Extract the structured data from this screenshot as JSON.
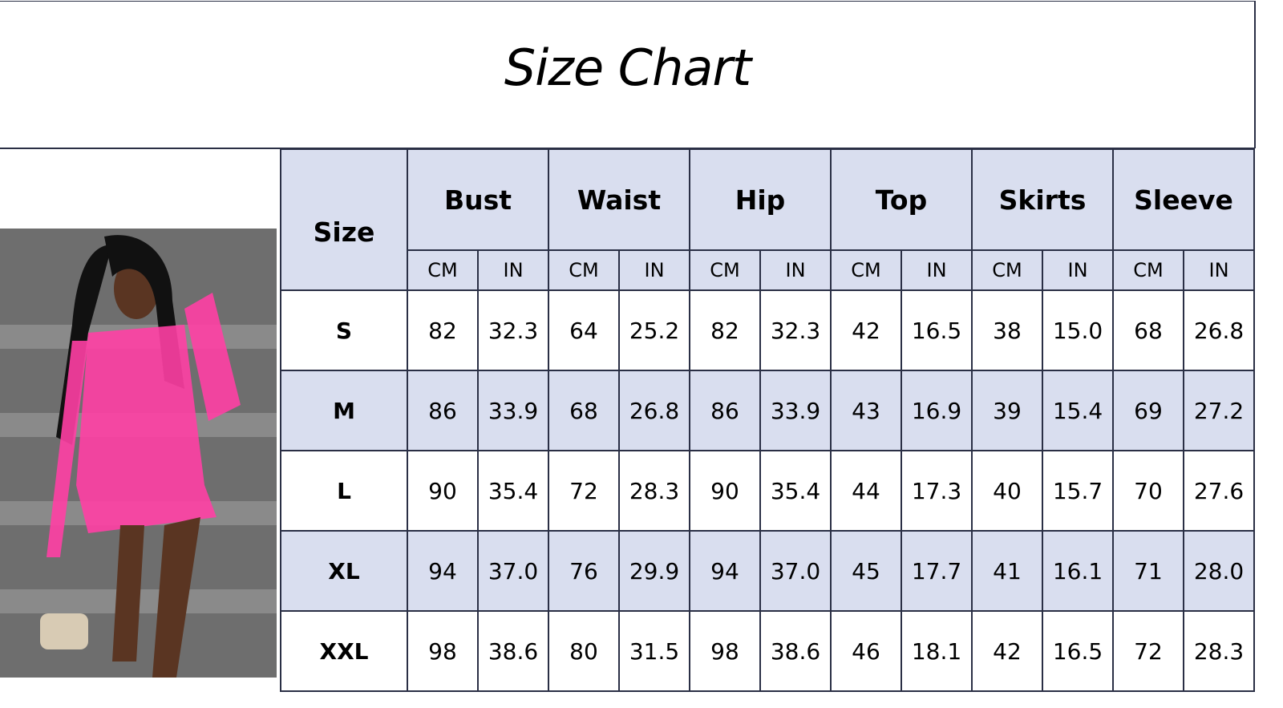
{
  "title": "Size Chart",
  "colors": {
    "header_bg": "#d9deef",
    "border": "#2a2f45",
    "dress": "#ff3fa4"
  },
  "photo": {
    "icon": "model-photo",
    "description_hidden": true
  },
  "table": {
    "size_header": "Size",
    "groups": [
      "Bust",
      "Waist",
      "Hip",
      "Top",
      "Skirts",
      "Sleeve"
    ],
    "units": [
      "CM",
      "IN"
    ],
    "rows": [
      {
        "size": "S",
        "values": [
          "82",
          "32.3",
          "64",
          "25.2",
          "82",
          "32.3",
          "42",
          "16.5",
          "38",
          "15.0",
          "68",
          "26.8"
        ]
      },
      {
        "size": "M",
        "values": [
          "86",
          "33.9",
          "68",
          "26.8",
          "86",
          "33.9",
          "43",
          "16.9",
          "39",
          "15.4",
          "69",
          "27.2"
        ]
      },
      {
        "size": "L",
        "values": [
          "90",
          "35.4",
          "72",
          "28.3",
          "90",
          "35.4",
          "44",
          "17.3",
          "40",
          "15.7",
          "70",
          "27.6"
        ]
      },
      {
        "size": "XL",
        "values": [
          "94",
          "37.0",
          "76",
          "29.9",
          "94",
          "37.0",
          "45",
          "17.7",
          "41",
          "16.1",
          "71",
          "28.0"
        ]
      },
      {
        "size": "XXL",
        "values": [
          "98",
          "38.6",
          "80",
          "31.5",
          "98",
          "38.6",
          "46",
          "18.1",
          "42",
          "16.5",
          "72",
          "28.3"
        ]
      }
    ]
  }
}
